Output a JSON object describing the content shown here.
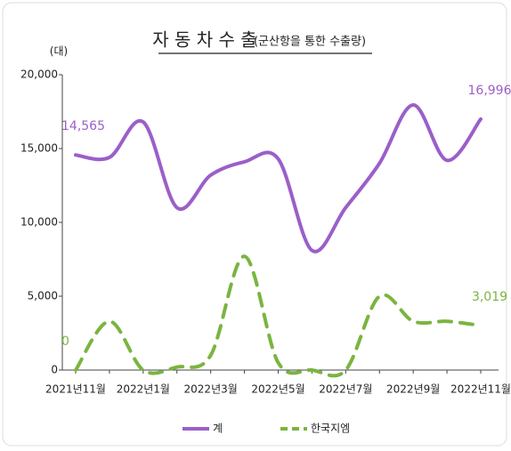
{
  "chart_data": {
    "type": "line",
    "title": "자 동 차 수 출",
    "subtitle": "(군산항을 통한 수출량)",
    "y_unit": "(대)",
    "categories": [
      "2021년11월",
      null,
      "2022년1월",
      null,
      "2022년3월",
      null,
      "2022년5월",
      null,
      "2022년7월",
      null,
      "2022년9월",
      null,
      "2022년11월"
    ],
    "series": [
      {
        "name": "계",
        "color": "#9b5fc9",
        "dashed": false,
        "values": [
          14565,
          14400,
          16800,
          11000,
          13200,
          14100,
          14300,
          8100,
          11000,
          14000,
          17950,
          14200,
          16996
        ],
        "value_labels": [
          "14,565",
          null,
          null,
          null,
          null,
          null,
          null,
          null,
          null,
          null,
          null,
          null,
          "16,996"
        ]
      },
      {
        "name": "한국지엠",
        "color": "#7ab540",
        "dashed": true,
        "values": [
          0,
          3300,
          0,
          200,
          1000,
          7700,
          500,
          0,
          0,
          5000,
          3300,
          3300,
          3019
        ],
        "value_labels": [
          "0",
          null,
          null,
          null,
          null,
          null,
          null,
          null,
          null,
          null,
          null,
          null,
          "3,019"
        ]
      }
    ],
    "ylim": [
      0,
      20000
    ],
    "yticks": [
      {
        "value": 0,
        "label": "0"
      },
      {
        "value": 5000,
        "label": "5,000"
      },
      {
        "value": 10000,
        "label": "10,000"
      },
      {
        "value": 15000,
        "label": "15,000"
      },
      {
        "value": 20000,
        "label": "20,000"
      }
    ],
    "legend": "bottom"
  }
}
